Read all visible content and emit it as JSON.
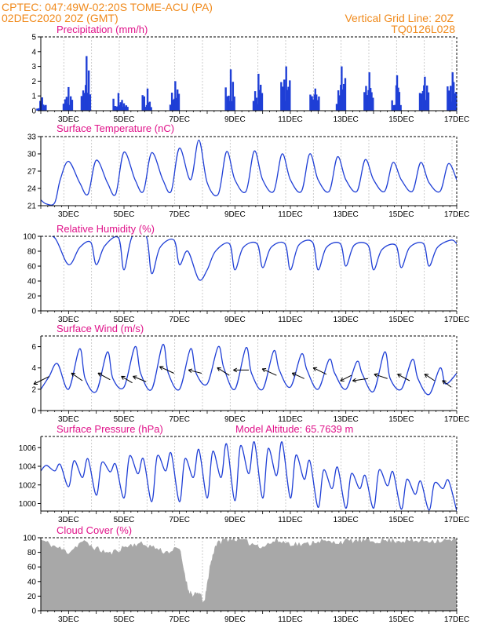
{
  "header": {
    "line1_left": "CPTEC:  047:49W-02:20S  TOME-ACU (PA)",
    "line2_left": "02DEC2020 20Z (GMT)",
    "line1_right": "Vertical Grid Line: 20Z",
    "line2_right": "TQ0126L028"
  },
  "colors": {
    "header_text": "#f08a1c",
    "panel_title": "#e0138a",
    "series_line": "#1f3fd6",
    "precip_bars": "#1f3fd6",
    "cloud_fill": "#a8a8a8",
    "wind_arrows": "#000000"
  },
  "chart_data": [
    {
      "type": "bar",
      "title": "Precipitation (mm/h)",
      "ylim": [
        0,
        5
      ],
      "yticks": [
        0,
        1,
        2,
        3,
        4,
        5
      ],
      "xrange_days": [
        2,
        17
      ],
      "xticks": [
        "3DEC",
        "5DEC",
        "7DEC",
        "9DEC",
        "11DEC",
        "13DEC",
        "15DEC",
        "17DEC"
      ],
      "bursts": [
        {
          "day": 2.05,
          "peak": 0.9
        },
        {
          "day": 3.0,
          "peak": 1.6
        },
        {
          "day": 3.65,
          "peak": 3.7
        },
        {
          "day": 4.8,
          "peak": 1.2
        },
        {
          "day": 5.0,
          "peak": 0.5
        },
        {
          "day": 5.85,
          "peak": 1.5
        },
        {
          "day": 6.85,
          "peak": 2.0
        },
        {
          "day": 8.85,
          "peak": 2.8
        },
        {
          "day": 9.85,
          "peak": 2.5
        },
        {
          "day": 10.85,
          "peak": 3.0
        },
        {
          "day": 11.9,
          "peak": 1.5
        },
        {
          "day": 12.85,
          "peak": 3.0
        },
        {
          "day": 13.85,
          "peak": 2.6
        },
        {
          "day": 14.85,
          "peak": 2.4
        },
        {
          "day": 15.85,
          "peak": 2.3
        },
        {
          "day": 16.85,
          "peak": 2.6
        }
      ]
    },
    {
      "type": "line",
      "title": "Surface Temperature (nC)",
      "ylim": [
        21,
        33
      ],
      "yticks": [
        21,
        24,
        27,
        30,
        33
      ],
      "xrange_days": [
        2,
        17
      ],
      "xticks": [
        "3DEC",
        "5DEC",
        "7DEC",
        "9DEC",
        "11DEC",
        "13DEC",
        "15DEC",
        "17DEC"
      ],
      "x": [
        2.0,
        2.2,
        2.5,
        2.7,
        3.0,
        3.4,
        3.7,
        4.0,
        4.4,
        4.7,
        5.0,
        5.4,
        5.7,
        6.0,
        6.4,
        6.7,
        7.0,
        7.4,
        7.7,
        8.0,
        8.4,
        8.7,
        9.0,
        9.4,
        9.7,
        10.0,
        10.4,
        10.7,
        11.0,
        11.4,
        11.7,
        12.0,
        12.4,
        12.7,
        13.0,
        13.4,
        13.7,
        14.0,
        14.4,
        14.7,
        15.0,
        15.4,
        15.7,
        16.0,
        16.4,
        16.7,
        17.0
      ],
      "y": [
        22.0,
        21.3,
        21.5,
        25.5,
        28.7,
        25.0,
        23.0,
        28.9,
        25.0,
        23.0,
        30.3,
        25.5,
        23.5,
        30.2,
        25.5,
        23.5,
        31.0,
        25.5,
        32.4,
        25.0,
        23.0,
        30.4,
        25.5,
        23.5,
        30.5,
        25.5,
        23.5,
        30.0,
        25.5,
        23.5,
        30.0,
        25.5,
        23.5,
        29.5,
        25.5,
        23.5,
        29.0,
        25.5,
        23.5,
        28.5,
        25.5,
        23.5,
        28.5,
        25.0,
        23.5,
        28.3,
        25.5
      ]
    },
    {
      "type": "line",
      "title": "Relative Humidity (%)",
      "ylim": [
        0,
        100
      ],
      "yticks": [
        0,
        20,
        40,
        60,
        80,
        100
      ],
      "xrange_days": [
        2,
        17
      ],
      "xticks": [
        "3DEC",
        "5DEC",
        "7DEC",
        "9DEC",
        "11DEC",
        "13DEC",
        "15DEC",
        "17DEC"
      ],
      "x": [
        2.0,
        2.5,
        3.0,
        3.4,
        3.8,
        4.0,
        4.3,
        4.8,
        5.0,
        5.3,
        5.8,
        6.0,
        6.3,
        6.8,
        7.0,
        7.3,
        7.7,
        8.0,
        8.3,
        8.8,
        9.0,
        9.3,
        9.8,
        10.0,
        10.3,
        10.8,
        11.0,
        11.3,
        11.8,
        12.0,
        12.3,
        12.8,
        13.0,
        13.3,
        13.8,
        14.0,
        14.3,
        14.8,
        15.0,
        15.3,
        15.8,
        16.0,
        16.3,
        16.8,
        17.0
      ],
      "y": [
        100,
        98,
        62,
        85,
        92,
        62,
        87,
        98,
        55,
        100,
        100,
        50,
        85,
        95,
        62,
        80,
        42,
        55,
        80,
        90,
        55,
        85,
        90,
        58,
        85,
        90,
        55,
        88,
        92,
        55,
        85,
        90,
        60,
        88,
        88,
        55,
        82,
        88,
        58,
        85,
        90,
        60,
        85,
        95,
        90
      ]
    },
    {
      "type": "line",
      "title": "Surface Wind (m/s)",
      "ylim": [
        0,
        7
      ],
      "yticks": [
        0,
        2,
        4,
        6
      ],
      "xrange_days": [
        2,
        17
      ],
      "xticks": [
        "3DEC",
        "5DEC",
        "7DEC",
        "9DEC",
        "11DEC",
        "13DEC",
        "15DEC",
        "17DEC"
      ],
      "x": [
        2.0,
        2.3,
        2.6,
        3.0,
        3.4,
        3.6,
        4.0,
        4.4,
        4.6,
        5.0,
        5.4,
        5.6,
        6.0,
        6.4,
        6.6,
        7.0,
        7.4,
        7.6,
        8.0,
        8.4,
        8.6,
        9.0,
        9.4,
        9.6,
        10.0,
        10.4,
        10.6,
        11.0,
        11.4,
        11.6,
        12.0,
        12.4,
        12.6,
        13.0,
        13.4,
        13.6,
        14.0,
        14.4,
        14.6,
        15.0,
        15.4,
        15.6,
        16.0,
        16.4,
        16.6,
        17.0
      ],
      "y": [
        2.0,
        3.2,
        4.4,
        2.0,
        5.8,
        3.0,
        1.8,
        5.5,
        3.0,
        2.2,
        6.0,
        3.5,
        2.0,
        6.2,
        3.5,
        2.0,
        5.8,
        3.5,
        2.5,
        6.0,
        4.0,
        2.0,
        5.9,
        3.5,
        2.0,
        5.6,
        3.8,
        2.2,
        5.3,
        3.8,
        2.0,
        4.8,
        3.5,
        2.0,
        4.6,
        3.4,
        1.8,
        5.5,
        3.0,
        2.0,
        4.8,
        3.0,
        1.5,
        4.0,
        2.5,
        3.5
      ],
      "arrows": [
        {
          "day": 2.3,
          "speed": 3.2,
          "u": 1.4,
          "v": 0.7
        },
        {
          "day": 3.5,
          "speed": 2.8,
          "u": 1.0,
          "v": -0.7
        },
        {
          "day": 4.5,
          "speed": 2.9,
          "u": 1.1,
          "v": -0.6
        },
        {
          "day": 5.3,
          "speed": 2.6,
          "u": 1.0,
          "v": -0.6
        },
        {
          "day": 5.8,
          "speed": 2.7,
          "u": 1.2,
          "v": -0.5
        },
        {
          "day": 6.8,
          "speed": 3.5,
          "u": 1.3,
          "v": -0.6
        },
        {
          "day": 7.8,
          "speed": 3.5,
          "u": 1.2,
          "v": -0.3
        },
        {
          "day": 8.8,
          "speed": 3.3,
          "u": 1.1,
          "v": -0.7
        },
        {
          "day": 9.5,
          "speed": 3.8,
          "u": 1.4,
          "v": 0.0
        },
        {
          "day": 10.5,
          "speed": 3.3,
          "u": 1.3,
          "v": -0.6
        },
        {
          "day": 11.5,
          "speed": 3.0,
          "u": 1.1,
          "v": -0.5
        },
        {
          "day": 12.3,
          "speed": 3.4,
          "u": 1.2,
          "v": -0.6
        },
        {
          "day": 13.2,
          "speed": 3.3,
          "u": 1.0,
          "v": 0.5
        },
        {
          "day": 13.8,
          "speed": 3.0,
          "u": 1.4,
          "v": 0.2
        },
        {
          "day": 14.5,
          "speed": 3.0,
          "u": 1.2,
          "v": -0.4
        },
        {
          "day": 15.3,
          "speed": 2.8,
          "u": 1.1,
          "v": -0.6
        },
        {
          "day": 16.2,
          "speed": 2.8,
          "u": 0.9,
          "v": -0.6
        },
        {
          "day": 16.8,
          "speed": 2.2,
          "u": 0.8,
          "v": -0.6
        }
      ]
    },
    {
      "type": "line",
      "title": "Surface Pressure (hPa)",
      "annotation": "Model Altitude: 65.7639  m",
      "ylim": [
        999.2,
        1007.2
      ],
      "yticks": [
        1000,
        1002,
        1004,
        1006
      ],
      "xrange_days": [
        2,
        17
      ],
      "xticks": [
        "3DEC",
        "5DEC",
        "7DEC",
        "9DEC",
        "11DEC",
        "13DEC",
        "15DEC",
        "17DEC"
      ],
      "x": [
        2.0,
        2.2,
        2.5,
        2.7,
        3.0,
        3.2,
        3.5,
        3.7,
        4.0,
        4.2,
        4.5,
        4.7,
        5.0,
        5.2,
        5.5,
        5.7,
        6.0,
        6.2,
        6.5,
        6.7,
        7.0,
        7.2,
        7.5,
        7.7,
        8.0,
        8.2,
        8.5,
        8.7,
        9.0,
        9.2,
        9.5,
        9.7,
        10.0,
        10.2,
        10.5,
        10.7,
        11.0,
        11.2,
        11.5,
        11.7,
        12.0,
        12.2,
        12.5,
        12.7,
        13.0,
        13.2,
        13.5,
        13.7,
        14.0,
        14.2,
        14.5,
        14.7,
        15.0,
        15.2,
        15.5,
        15.7,
        16.0,
        16.2,
        16.5,
        16.7,
        17.0
      ],
      "y": [
        1003.5,
        1004.1,
        1003.5,
        1004.2,
        1001.8,
        1004.6,
        1002.8,
        1004.8,
        1000.9,
        1004.4,
        1003.4,
        1004.2,
        1000.6,
        1005.1,
        1003.2,
        1004.8,
        1000.2,
        1005.1,
        1003.5,
        1005.4,
        1000.2,
        1004.8,
        1002.8,
        1005.8,
        1000.6,
        1005.6,
        1002.8,
        1006.4,
        1000.3,
        1006.2,
        1003.2,
        1006.6,
        1000.6,
        1005.9,
        1003.0,
        1006.6,
        1000.6,
        1005.2,
        1002.6,
        1004.6,
        999.6,
        1003.6,
        1001.6,
        1003.9,
        999.5,
        1003.2,
        1001.6,
        1003.0,
        999.5,
        1003.6,
        1001.9,
        1003.4,
        999.4,
        1002.6,
        1001.0,
        1002.4,
        999.3,
        1002.2,
        1001.6,
        1002.5,
        999.2
      ]
    },
    {
      "type": "area",
      "title": "Cloud Cover (%)",
      "ylim": [
        0,
        100
      ],
      "yticks": [
        0,
        20,
        40,
        60,
        80,
        100
      ],
      "xrange_days": [
        2,
        17
      ],
      "xticks": [
        "3DEC",
        "5DEC",
        "7DEC",
        "9DEC",
        "11DEC",
        "13DEC",
        "15DEC",
        "17DEC"
      ],
      "x": [
        2.0,
        2.5,
        3.0,
        3.5,
        4.0,
        4.5,
        5.0,
        5.5,
        6.0,
        6.5,
        7.0,
        7.3,
        7.5,
        7.7,
        7.9,
        8.1,
        8.3,
        8.6,
        9.0,
        9.5,
        10.0,
        10.5,
        11.0,
        11.5,
        12.0,
        12.5,
        13.0,
        13.5,
        14.0,
        14.5,
        15.0,
        15.5,
        16.0,
        16.5,
        17.0
      ],
      "y": [
        97,
        88,
        80,
        95,
        85,
        78,
        87,
        92,
        88,
        80,
        85,
        30,
        20,
        25,
        10,
        60,
        90,
        97,
        99,
        93,
        88,
        96,
        92,
        90,
        96,
        93,
        95,
        96,
        95,
        96,
        96,
        95,
        96,
        96,
        96
      ]
    }
  ]
}
